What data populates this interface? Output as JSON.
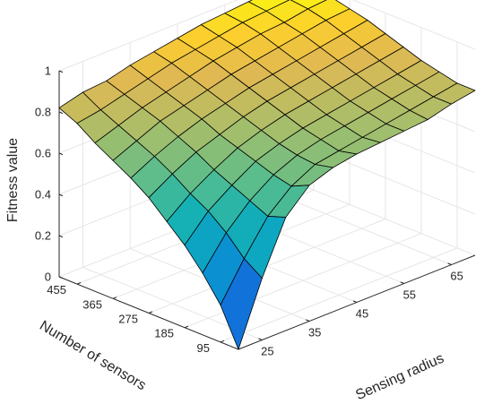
{
  "chart_data": {
    "type": "surface",
    "title": "",
    "zlabel": "Fitness value",
    "xlabel": "Sensing radius",
    "ylabel": "Number of sensors",
    "x_ticks": [
      "25",
      "35",
      "45",
      "55",
      "65"
    ],
    "y_ticks": [
      "95",
      "185",
      "275",
      "365",
      "455"
    ],
    "z_ticks": [
      "0",
      "0.2",
      "0.4",
      "0.6",
      "0.8",
      "1"
    ],
    "xlim": [
      20,
      70
    ],
    "ylim": [
      50,
      500
    ],
    "zlim": [
      0,
      1
    ],
    "grid": true,
    "colormap": "parula",
    "x": [
      20,
      25,
      30,
      35,
      40,
      45,
      50,
      55,
      60,
      65,
      70
    ],
    "y": [
      50,
      95,
      140,
      185,
      230,
      275,
      320,
      365,
      410,
      455,
      500
    ],
    "z": [
      [
        0.0,
        0.3,
        0.55,
        0.66,
        0.7,
        0.72,
        0.73,
        0.74,
        0.75,
        0.78,
        0.8
      ],
      [
        0.18,
        0.36,
        0.52,
        0.62,
        0.68,
        0.7,
        0.72,
        0.74,
        0.76,
        0.78,
        0.8
      ],
      [
        0.3,
        0.45,
        0.56,
        0.64,
        0.69,
        0.72,
        0.74,
        0.76,
        0.78,
        0.8,
        0.82
      ],
      [
        0.4,
        0.52,
        0.6,
        0.67,
        0.71,
        0.74,
        0.76,
        0.78,
        0.8,
        0.82,
        0.84
      ],
      [
        0.48,
        0.57,
        0.64,
        0.7,
        0.74,
        0.77,
        0.79,
        0.81,
        0.83,
        0.85,
        0.87
      ],
      [
        0.56,
        0.63,
        0.69,
        0.73,
        0.77,
        0.8,
        0.82,
        0.84,
        0.86,
        0.88,
        0.9
      ],
      [
        0.62,
        0.68,
        0.73,
        0.77,
        0.8,
        0.83,
        0.85,
        0.87,
        0.89,
        0.91,
        0.93
      ],
      [
        0.67,
        0.72,
        0.77,
        0.8,
        0.83,
        0.86,
        0.88,
        0.9,
        0.92,
        0.94,
        0.95
      ],
      [
        0.72,
        0.76,
        0.8,
        0.83,
        0.86,
        0.89,
        0.91,
        0.93,
        0.94,
        0.96,
        0.97
      ],
      [
        0.78,
        0.8,
        0.83,
        0.86,
        0.89,
        0.91,
        0.93,
        0.95,
        0.96,
        0.97,
        0.98
      ],
      [
        0.82,
        0.85,
        0.86,
        0.89,
        0.91,
        0.93,
        0.95,
        0.96,
        0.97,
        0.98,
        0.99
      ]
    ]
  }
}
